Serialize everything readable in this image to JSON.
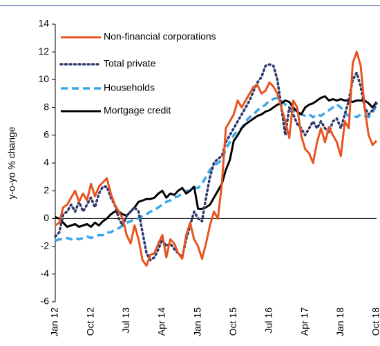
{
  "chart_data": {
    "type": "line",
    "y_label": "y-o-yo % change",
    "categories": [
      "Jan 12",
      null,
      null,
      null,
      null,
      null,
      null,
      null,
      null,
      "Oct 12",
      null,
      null,
      null,
      null,
      null,
      null,
      null,
      null,
      "Jul 13",
      null,
      null,
      null,
      null,
      null,
      null,
      null,
      null,
      "Apr 14",
      null,
      null,
      null,
      null,
      null,
      null,
      null,
      null,
      "Jan 15",
      null,
      null,
      null,
      null,
      null,
      null,
      null,
      null,
      "Oct 15",
      null,
      null,
      null,
      null,
      null,
      null,
      null,
      null,
      "Jul 16",
      null,
      null,
      null,
      null,
      null,
      null,
      null,
      null,
      "Apr 17",
      null,
      null,
      null,
      null,
      null,
      null,
      null,
      null,
      "Jan 18",
      null,
      null,
      null,
      null,
      null,
      null,
      null,
      null,
      "Oct 18"
    ],
    "ylim": [
      -6,
      14
    ],
    "yticks": [
      -6,
      -4,
      -2,
      0,
      2,
      4,
      6,
      8,
      10,
      12,
      14
    ],
    "legend": "top-left",
    "series": [
      {
        "name": "Non-financial corporations",
        "color": "#e8531f",
        "style": "solid",
        "values": [
          -0.5,
          -0.3,
          0.8,
          1.0,
          1.5,
          2.0,
          1.2,
          1.8,
          1.3,
          2.5,
          1.6,
          2.3,
          2.6,
          2.9,
          1.8,
          1.0,
          0.5,
          0.0,
          -1.2,
          -1.8,
          -0.5,
          -1.5,
          -3.0,
          -3.4,
          -2.6,
          -2.5,
          -1.8,
          -1.2,
          -2.8,
          -1.5,
          -1.8,
          -2.5,
          -2.9,
          -1.2,
          -0.3,
          -1.5,
          -2.0,
          -2.9,
          -1.8,
          -0.5,
          0.5,
          0.0,
          2.5,
          6.5,
          7.0,
          7.5,
          8.5,
          8.0,
          8.5,
          9.0,
          9.5,
          9.6,
          9.0,
          9.2,
          9.8,
          9.5,
          9.0,
          8.0,
          7.0,
          5.8,
          8.5,
          8.0,
          6.0,
          5.0,
          4.7,
          4.0,
          5.5,
          6.5,
          5.5,
          6.6,
          6.0,
          5.5,
          4.5,
          7.0,
          6.5,
          11.2,
          12.0,
          11.0,
          8.0,
          6.0,
          5.3,
          5.6
        ]
      },
      {
        "name": "Total private",
        "color": "#2e3a6e",
        "style": "dotted",
        "values": [
          -1.3,
          -1.0,
          0.3,
          0.5,
          1.0,
          0.5,
          1.2,
          0.5,
          1.0,
          1.5,
          0.8,
          1.8,
          2.3,
          2.3,
          1.5,
          1.0,
          0.0,
          -0.5,
          0.2,
          0.5,
          0.8,
          0.5,
          -1.0,
          -2.5,
          -3.0,
          -2.8,
          -2.2,
          -1.5,
          -2.0,
          -1.8,
          -2.2,
          -2.5,
          -2.8,
          -1.5,
          -0.5,
          0.5,
          0.0,
          -0.2,
          1.5,
          3.0,
          4.0,
          4.3,
          4.5,
          5.5,
          6.0,
          6.5,
          7.0,
          7.5,
          8.0,
          8.5,
          9.2,
          9.8,
          10.2,
          11.0,
          11.1,
          11.0,
          10.0,
          8.0,
          6.0,
          8.0,
          7.5,
          6.8,
          6.5,
          6.0,
          6.5,
          7.0,
          6.5,
          7.0,
          6.5,
          6.2,
          7.0,
          7.2,
          6.5,
          7.5,
          8.5,
          10.0,
          10.5,
          9.5,
          8.0,
          7.5,
          7.8,
          8.3
        ]
      },
      {
        "name": "Households",
        "color": "#3aa6e8",
        "style": "dashed",
        "values": [
          -1.6,
          -1.5,
          -1.5,
          -1.4,
          -1.5,
          -1.4,
          -1.5,
          -1.4,
          -1.3,
          -1.4,
          -1.3,
          -1.2,
          -1.2,
          -1.0,
          -1.0,
          -0.8,
          -0.7,
          -0.5,
          -0.3,
          -0.2,
          0.0,
          0.0,
          0.2,
          0.3,
          0.5,
          0.6,
          0.8,
          1.0,
          1.2,
          1.3,
          1.5,
          1.6,
          1.8,
          2.0,
          2.0,
          2.2,
          2.2,
          2.5,
          3.0,
          3.5,
          3.8,
          4.0,
          4.2,
          5.0,
          5.5,
          6.0,
          6.3,
          6.5,
          7.0,
          7.3,
          7.5,
          7.8,
          8.0,
          8.2,
          8.5,
          8.6,
          8.7,
          8.5,
          8.2,
          8.0,
          7.8,
          7.6,
          7.5,
          7.4,
          7.5,
          7.3,
          7.5,
          7.4,
          7.6,
          7.8,
          8.0,
          8.2,
          8.0,
          7.6,
          7.4,
          7.4,
          7.3,
          7.5,
          7.4,
          7.3,
          7.6,
          8.2
        ]
      },
      {
        "name": "Mortgage credit",
        "color": "#000000",
        "style": "solid",
        "values": [
          0.1,
          0.0,
          -0.3,
          -0.6,
          -0.5,
          -0.4,
          -0.6,
          -0.5,
          -0.4,
          -0.6,
          -0.3,
          -0.5,
          -0.2,
          0.0,
          0.3,
          0.5,
          0.5,
          0.3,
          0.2,
          0.5,
          0.8,
          1.2,
          1.3,
          1.4,
          1.4,
          1.5,
          1.8,
          2.0,
          1.5,
          1.8,
          1.7,
          2.0,
          2.2,
          1.8,
          2.0,
          2.3,
          0.7,
          0.7,
          0.8,
          1.0,
          1.5,
          2.0,
          2.5,
          3.5,
          4.2,
          5.6,
          6.0,
          6.5,
          6.8,
          7.0,
          7.2,
          7.4,
          7.5,
          7.7,
          7.8,
          8.0,
          8.2,
          8.3,
          8.5,
          8.4,
          8.0,
          7.7,
          7.5,
          8.0,
          8.2,
          8.3,
          8.5,
          8.7,
          8.8,
          8.5,
          8.6,
          8.5,
          8.6,
          8.5,
          8.5,
          8.4,
          8.5,
          8.5,
          8.5,
          8.3,
          8.0,
          8.4
        ]
      }
    ]
  }
}
